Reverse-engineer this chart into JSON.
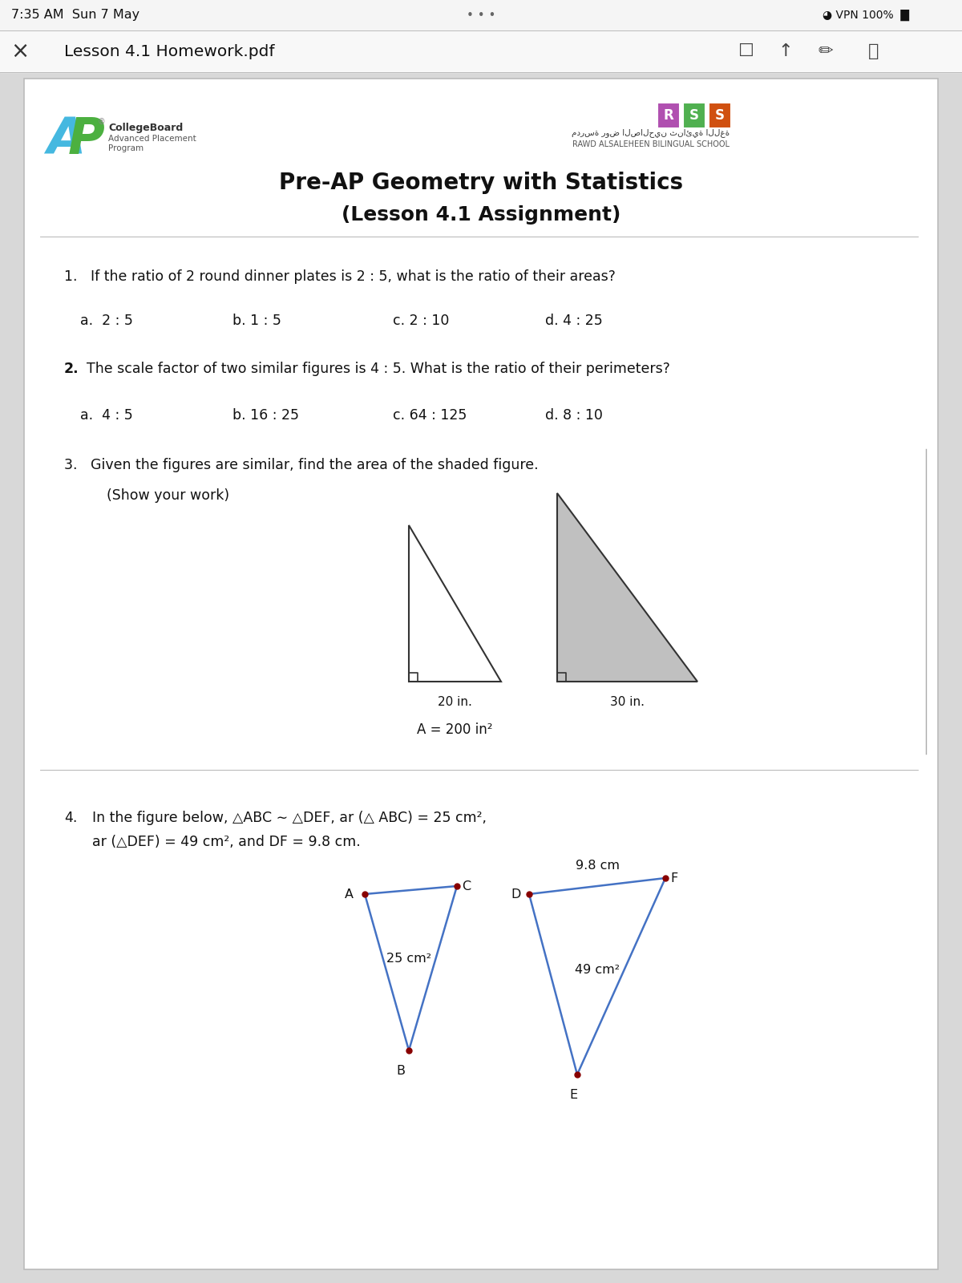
{
  "status_bar_text": "7:35 AM  Sun 7 May",
  "nav_title": "Lesson 4.1 Homework.pdf",
  "title1": "Pre-AP Geometry with Statistics",
  "title2": "(Lesson 4.1 Assignment)",
  "q1_text": "1.   If the ratio of 2 round dinner plates is 2 : 5, what is the ratio of their areas?",
  "q1_options": [
    "a.  2 : 5",
    "b. 1 : 5",
    "c. 2 : 10",
    "d. 4 : 25"
  ],
  "q2_label": "2.",
  "q2_text": "The scale factor of two similar figures is 4 : 5. What is the ratio of their perimeters?",
  "q2_options": [
    "a.  4 : 5",
    "b. 16 : 25",
    "c. 64 : 125",
    "d. 8 : 10"
  ],
  "q3_text": "3.   Given the figures are similar, find the area of the shaded figure.",
  "q3_subtext": "      (Show your work)",
  "q4_label": "4.",
  "q4_text": "In the figure below, △ABC ∼ △DEF, ar (△ ABC) = 25 cm²,",
  "q4_text2": "ar (△DEF) = 49 cm², and DF = 9.8 cm.",
  "tri_blue_color": "#4472c4",
  "dot_red": "#880000",
  "tri2_fill": "#c0c0c0",
  "tri_dark": "#333333"
}
